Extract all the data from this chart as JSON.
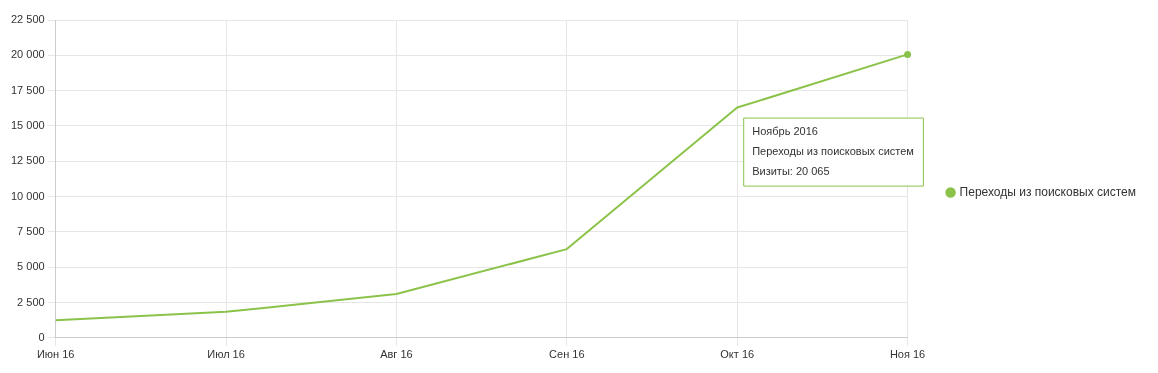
{
  "chart_data": {
    "type": "line",
    "categories": [
      "Июн 16",
      "Июл 16",
      "Авг 16",
      "Сен 16",
      "Окт 16",
      "Ноя 16"
    ],
    "series": [
      {
        "name": "Переходы из поисковых систем",
        "color": "#8bc34a",
        "values": [
          1250,
          1840,
          3100,
          6280,
          16300,
          20065
        ]
      }
    ],
    "ylim": [
      0,
      22500
    ],
    "yticks": [
      0,
      {
        "value": 2500,
        "label": "2 500"
      },
      {
        "value": 5000,
        "label": "5 000"
      },
      {
        "value": 7500,
        "label": "7 500"
      },
      {
        "value": 10000,
        "label": "10 000"
      },
      {
        "value": 12500,
        "label": "12 500"
      },
      {
        "value": 15000,
        "label": "15 000"
      },
      {
        "value": 17500,
        "label": "17 500"
      },
      {
        "value": 20000,
        "label": "20 000"
      },
      {
        "value": 22500,
        "label": "22 500"
      }
    ],
    "grid": true,
    "legend": "right",
    "marker": "none",
    "line_style": "solid",
    "annotations": [
      "Ноябрь 2016\nПереходы из поисковых систем\nВизиты: 20 065"
    ]
  }
}
